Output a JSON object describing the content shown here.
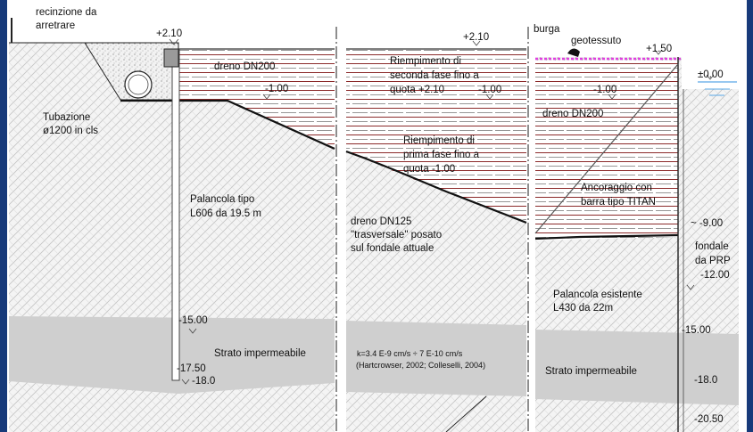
{
  "labels": {
    "recinzione_1": "recinzione da",
    "recinzione_2": "arretrare",
    "elev_left": "+2.10",
    "dreno_dn200_left": "dreno DN200",
    "elev_m100_left": "-1.00",
    "tubazione_1": "Tubazione",
    "tubazione_2": "ø1200 in cls",
    "palancola_1": "Palancola tipo",
    "palancola_2": "L606 da 19.5 m",
    "elev_m1500_left": "-15.00",
    "strato_left": "Strato impermeabile",
    "elev_m1750": "-17.50",
    "elev_m180_left": "-18.0",
    "elev_mid": "+2.10",
    "riemp2_1": "Riempimento di",
    "riemp2_2": "seconda fase fino a",
    "riemp2_3": "quota +2.10",
    "elev_m100_mid": "-1.00",
    "riemp1_1": "Riempimento di",
    "riemp1_2": "prima fase fino a",
    "riemp1_3": "quota -1.00",
    "dreno125_1": "dreno DN125",
    "dreno125_2": "\"trasversale\" posato",
    "dreno125_3": "sul fondale attuale",
    "k_1": "k=3.4 E-9 cm/s ÷ 7 E-10 cm/s",
    "k_2": "(Hartcrowser, 2002; Colleselli, 2004)",
    "burga": "burga",
    "geotessuto": "geotessuto",
    "elev_p150": "+1.50",
    "elev_000": "±0.00",
    "elev_m100_right": "-1.00",
    "dreno_dn200_right": "dreno DN200",
    "ancoraggio_1": "Ancoraggio con",
    "ancoraggio_2": "barra tipo TITAN",
    "elev_m900": "~ -9.00",
    "fondale_1": "fondale",
    "fondale_2": "da PRP",
    "elev_m1200": "-12.00",
    "palancola_es_1": "Palancola esistente",
    "palancola_es_2": "L430 da 22m",
    "elev_m1500_right": "-15.00",
    "strato_right": "Strato impermeabile",
    "elev_m180_right": "-18.0",
    "elev_m2050": "-20.50"
  },
  "colors": {
    "frame": "#173a7a",
    "paper": "#ffffff",
    "hatch": "#c9c9c9",
    "fill_stripe": "#8b2a2a",
    "fill_dash": "#5a5a5a",
    "impermeable": "#cfcfcf",
    "water": "#5aa8e6",
    "geotextile": "#e040e0"
  }
}
